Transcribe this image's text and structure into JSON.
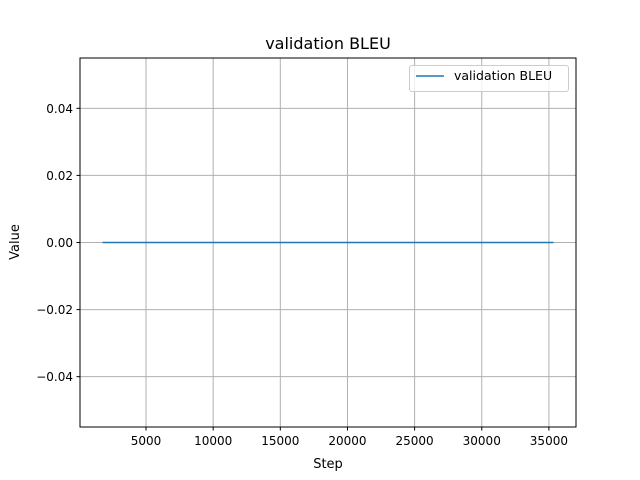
{
  "chart_data": {
    "type": "line",
    "title": "validation BLEU",
    "xlabel": "Step",
    "ylabel": "Value",
    "xlim": [
      84,
      37018
    ],
    "ylim": [
      -0.055,
      0.055
    ],
    "xticks": [
      5000,
      10000,
      15000,
      20000,
      25000,
      30000,
      35000
    ],
    "xtick_labels": [
      "5000",
      "10000",
      "15000",
      "20000",
      "25000",
      "30000",
      "35000"
    ],
    "yticks": [
      -0.04,
      -0.02,
      0.0,
      0.02,
      0.04
    ],
    "ytick_labels": [
      "−0.04",
      "−0.02",
      "0.00",
      "0.02",
      "0.04"
    ],
    "grid": true,
    "legend_position": "top-right",
    "series": [
      {
        "name": "validation BLEU",
        "color": "#1f77b4",
        "x": [
          1763,
          35339
        ],
        "y": [
          0.0,
          0.0
        ]
      }
    ]
  }
}
